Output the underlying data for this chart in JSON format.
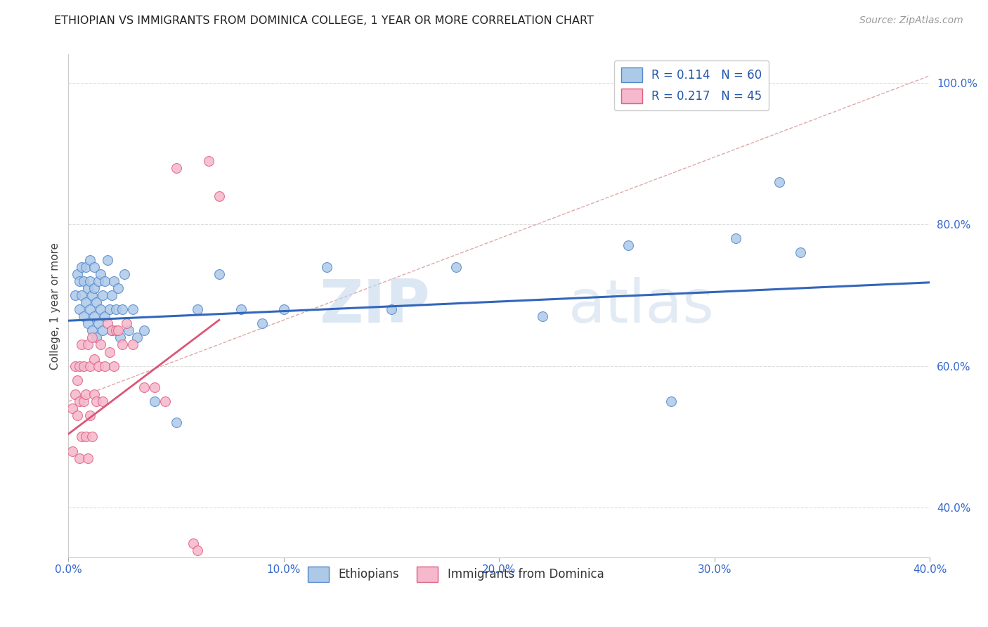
{
  "title": "ETHIOPIAN VS IMMIGRANTS FROM DOMINICA COLLEGE, 1 YEAR OR MORE CORRELATION CHART",
  "source_text": "Source: ZipAtlas.com",
  "ylabel": "College, 1 year or more",
  "xlim": [
    0.0,
    0.4
  ],
  "ylim": [
    0.33,
    1.04
  ],
  "xtick_labels": [
    "0.0%",
    "",
    "10.0%",
    "",
    "20.0%",
    "",
    "30.0%",
    "",
    "40.0%"
  ],
  "xtick_vals": [
    0.0,
    0.05,
    0.1,
    0.15,
    0.2,
    0.25,
    0.3,
    0.35,
    0.4
  ],
  "ytick_labels": [
    "40.0%",
    "60.0%",
    "80.0%",
    "100.0%"
  ],
  "ytick_vals": [
    0.4,
    0.6,
    0.8,
    1.0
  ],
  "blue_color": "#adc9e8",
  "blue_edge": "#5588cc",
  "pink_color": "#f5b8cc",
  "pink_edge": "#e06080",
  "blue_line_color": "#3366bb",
  "pink_line_color": "#dd5577",
  "ref_line_color": "#cccccc",
  "legend_R1": "R = 0.114",
  "legend_N1": "N = 60",
  "legend_R2": "R = 0.217",
  "legend_N2": "N = 45",
  "watermark_zip": "ZIP",
  "watermark_atlas": "atlas",
  "blue_x": [
    0.003,
    0.004,
    0.005,
    0.005,
    0.006,
    0.006,
    0.007,
    0.007,
    0.008,
    0.008,
    0.009,
    0.009,
    0.01,
    0.01,
    0.01,
    0.011,
    0.011,
    0.012,
    0.012,
    0.012,
    0.013,
    0.013,
    0.014,
    0.014,
    0.015,
    0.015,
    0.016,
    0.016,
    0.017,
    0.017,
    0.018,
    0.019,
    0.02,
    0.02,
    0.021,
    0.022,
    0.023,
    0.024,
    0.025,
    0.026,
    0.028,
    0.03,
    0.032,
    0.035,
    0.04,
    0.05,
    0.06,
    0.07,
    0.08,
    0.09,
    0.1,
    0.12,
    0.15,
    0.18,
    0.22,
    0.26,
    0.28,
    0.31,
    0.33,
    0.34
  ],
  "blue_y": [
    0.7,
    0.73,
    0.68,
    0.72,
    0.74,
    0.7,
    0.67,
    0.72,
    0.69,
    0.74,
    0.66,
    0.71,
    0.68,
    0.72,
    0.75,
    0.65,
    0.7,
    0.67,
    0.71,
    0.74,
    0.64,
    0.69,
    0.66,
    0.72,
    0.68,
    0.73,
    0.65,
    0.7,
    0.67,
    0.72,
    0.75,
    0.68,
    0.65,
    0.7,
    0.72,
    0.68,
    0.71,
    0.64,
    0.68,
    0.73,
    0.65,
    0.68,
    0.64,
    0.65,
    0.55,
    0.52,
    0.68,
    0.73,
    0.68,
    0.66,
    0.68,
    0.74,
    0.68,
    0.74,
    0.67,
    0.77,
    0.55,
    0.78,
    0.86,
    0.76
  ],
  "pink_x": [
    0.002,
    0.002,
    0.003,
    0.003,
    0.004,
    0.004,
    0.005,
    0.005,
    0.005,
    0.006,
    0.006,
    0.007,
    0.007,
    0.008,
    0.008,
    0.009,
    0.009,
    0.01,
    0.01,
    0.011,
    0.011,
    0.012,
    0.012,
    0.013,
    0.014,
    0.015,
    0.016,
    0.017,
    0.018,
    0.019,
    0.02,
    0.021,
    0.022,
    0.023,
    0.025,
    0.027,
    0.03,
    0.035,
    0.04,
    0.045,
    0.05,
    0.058,
    0.06,
    0.065,
    0.07
  ],
  "pink_y": [
    0.54,
    0.48,
    0.56,
    0.6,
    0.53,
    0.58,
    0.47,
    0.55,
    0.6,
    0.5,
    0.63,
    0.55,
    0.6,
    0.5,
    0.56,
    0.47,
    0.63,
    0.53,
    0.6,
    0.5,
    0.64,
    0.56,
    0.61,
    0.55,
    0.6,
    0.63,
    0.55,
    0.6,
    0.66,
    0.62,
    0.65,
    0.6,
    0.65,
    0.65,
    0.63,
    0.66,
    0.63,
    0.57,
    0.57,
    0.55,
    0.88,
    0.35,
    0.34,
    0.89,
    0.84
  ],
  "blue_trend_x": [
    0.0,
    0.4
  ],
  "blue_trend_y": [
    0.664,
    0.718
  ],
  "pink_trend_x": [
    0.0,
    0.07
  ],
  "pink_trend_y": [
    0.504,
    0.665
  ],
  "ref_line_x": [
    0.0,
    0.4
  ],
  "ref_line_y": [
    0.55,
    1.01
  ]
}
